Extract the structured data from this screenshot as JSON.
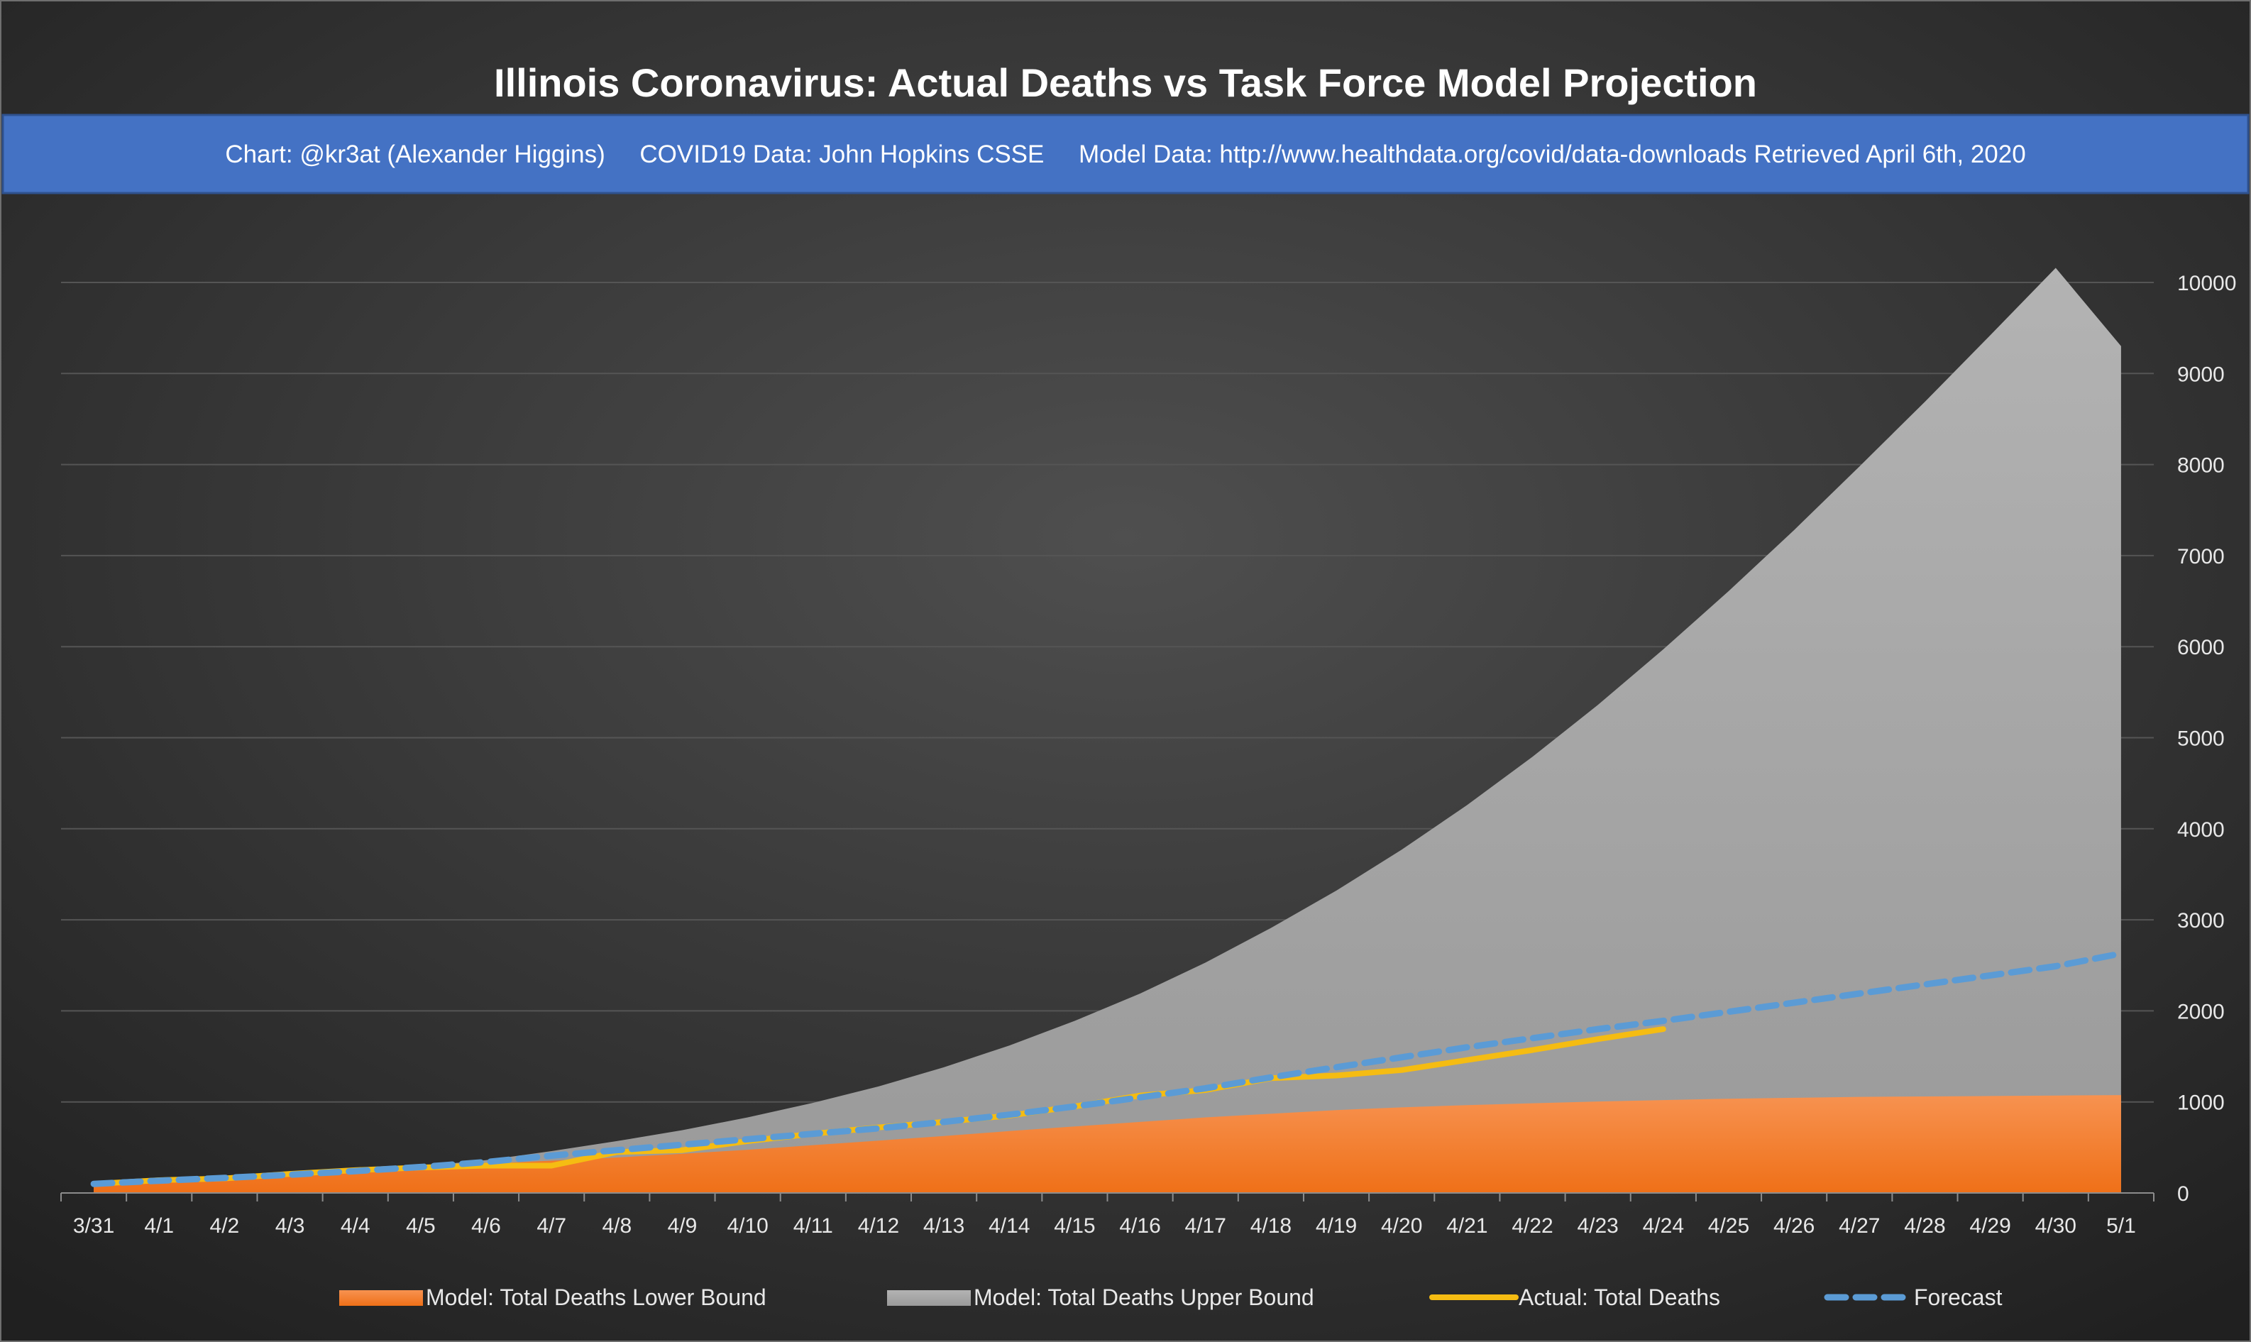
{
  "chart_data": {
    "type": "area",
    "title": "Illinois Coronavirus: Actual Deaths vs Task Force Model Projection",
    "subtitle": "Chart: @kr3at (Alexander Higgins)     COVID19 Data: John Hopkins CSSE     Model Data: http://www.healthdata.org/covid/data-downloads Retrieved April 6th, 2020",
    "categories": [
      "3/31",
      "4/1",
      "4/2",
      "4/3",
      "4/4",
      "4/5",
      "4/6",
      "4/7",
      "4/8",
      "4/9",
      "4/10",
      "4/11",
      "4/12",
      "4/13",
      "4/14",
      "4/15",
      "4/16",
      "4/17",
      "4/18",
      "4/19",
      "4/20",
      "4/21",
      "4/22",
      "4/23",
      "4/24",
      "4/25",
      "4/26",
      "4/27",
      "4/28",
      "4/29",
      "4/30",
      "5/1"
    ],
    "y_axis": {
      "min": 0,
      "max": 10000,
      "step": 1000,
      "position": "right",
      "ticks": [
        "0",
        "1000",
        "2000",
        "3000",
        "4000",
        "5000",
        "6000",
        "7000",
        "8000",
        "9000",
        "10000"
      ]
    },
    "grid": true,
    "legend_position": "bottom",
    "series": [
      {
        "name": "Model: Total Deaths Upper Bound",
        "kind": "area",
        "color": "#a6a6a6",
        "values": [
          100,
          140,
          175,
          215,
          255,
          295,
          360,
          460,
          570,
          690,
          830,
          990,
          1170,
          1380,
          1620,
          1890,
          2190,
          2530,
          2910,
          3320,
          3770,
          4260,
          4790,
          5360,
          5970,
          6610,
          7280,
          7980,
          8690,
          9420,
          10160,
          9300
        ]
      },
      {
        "name": "Model: Total Deaths Lower Bound",
        "kind": "area",
        "color": "#f07b22",
        "values": [
          100,
          130,
          165,
          200,
          240,
          280,
          320,
          355,
          390,
          430,
          475,
          525,
          575,
          625,
          680,
          730,
          780,
          830,
          870,
          910,
          940,
          965,
          985,
          1005,
          1020,
          1035,
          1045,
          1055,
          1060,
          1065,
          1070,
          1075
        ]
      },
      {
        "name": "Actual: Total Deaths",
        "kind": "line",
        "color": "#f5bc12",
        "values": [
          100,
          140,
          160,
          210,
          250,
          280,
          300,
          300,
          450,
          470,
          570,
          650,
          720,
          780,
          850,
          950,
          1070,
          1130,
          1260,
          1290,
          1350,
          1460,
          1570,
          1690,
          1800,
          null,
          null,
          null,
          null,
          null,
          null,
          null
        ]
      },
      {
        "name": "Forecast",
        "kind": "dashed-line",
        "color": "#5b9bd5",
        "values": [
          100,
          135,
          165,
          200,
          240,
          285,
          340,
          410,
          470,
          530,
          590,
          650,
          710,
          780,
          860,
          950,
          1050,
          1150,
          1270,
          1380,
          1490,
          1600,
          1700,
          1800,
          1890,
          1990,
          2090,
          2190,
          2290,
          2390,
          2490,
          2630
        ]
      }
    ]
  }
}
